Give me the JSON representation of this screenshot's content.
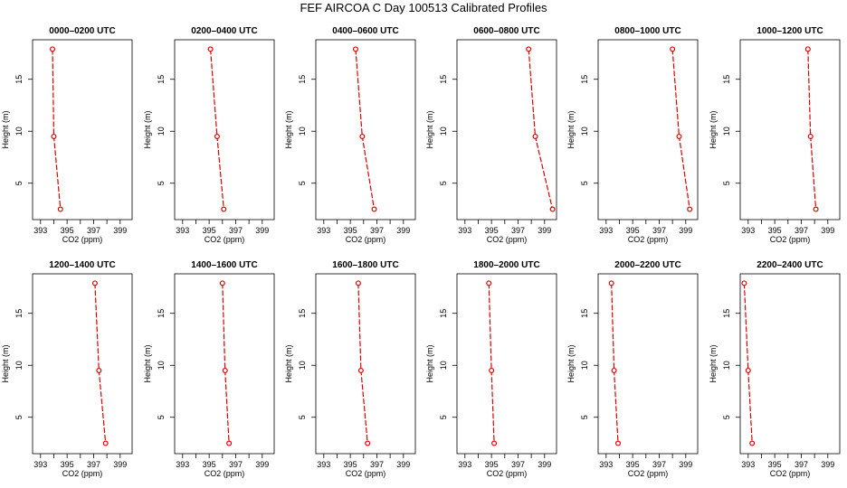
{
  "title": "FEF AIRCOA C  Day 100513  Calibrated Profiles",
  "colors": {
    "series": "#dd0000",
    "axis": "#000000"
  },
  "chart_data": {
    "type": "line",
    "xlabel": "CO2 (ppm)",
    "ylabel": "Height (m)",
    "xlim": [
      392.4,
      399.9
    ],
    "ylim": [
      1.5,
      18.8
    ],
    "xticks": [
      393,
      395,
      397,
      399
    ],
    "xticks_minor": [
      394,
      396,
      398
    ],
    "yticks": [
      5,
      10,
      15
    ],
    "heights": [
      17.9,
      9.5,
      2.5
    ],
    "panels": [
      {
        "title": "0000–0200 UTC",
        "co2": [
          393.9,
          394.0,
          394.5
        ]
      },
      {
        "title": "0200–0400 UTC",
        "co2": [
          395.1,
          395.6,
          396.1
        ]
      },
      {
        "title": "0400–0600 UTC",
        "co2": [
          395.4,
          395.9,
          396.8
        ]
      },
      {
        "title": "0600–0800 UTC",
        "co2": [
          397.8,
          398.3,
          399.6
        ]
      },
      {
        "title": "0800–1000 UTC",
        "co2": [
          398.0,
          398.5,
          399.3
        ]
      },
      {
        "title": "1000–1200 UTC",
        "co2": [
          397.5,
          397.7,
          398.1
        ]
      },
      {
        "title": "1200–1400 UTC",
        "co2": [
          397.1,
          397.4,
          397.9
        ]
      },
      {
        "title": "1400–1600 UTC",
        "co2": [
          396.0,
          396.2,
          396.5
        ]
      },
      {
        "title": "1600–1800 UTC",
        "co2": [
          395.6,
          395.8,
          396.3
        ]
      },
      {
        "title": "1800–2000 UTC",
        "co2": [
          394.8,
          395.0,
          395.2
        ]
      },
      {
        "title": "2000–2200 UTC",
        "co2": [
          393.4,
          393.6,
          393.9
        ]
      },
      {
        "title": "2200–2400 UTC",
        "co2": [
          392.7,
          393.0,
          393.3
        ]
      }
    ]
  }
}
